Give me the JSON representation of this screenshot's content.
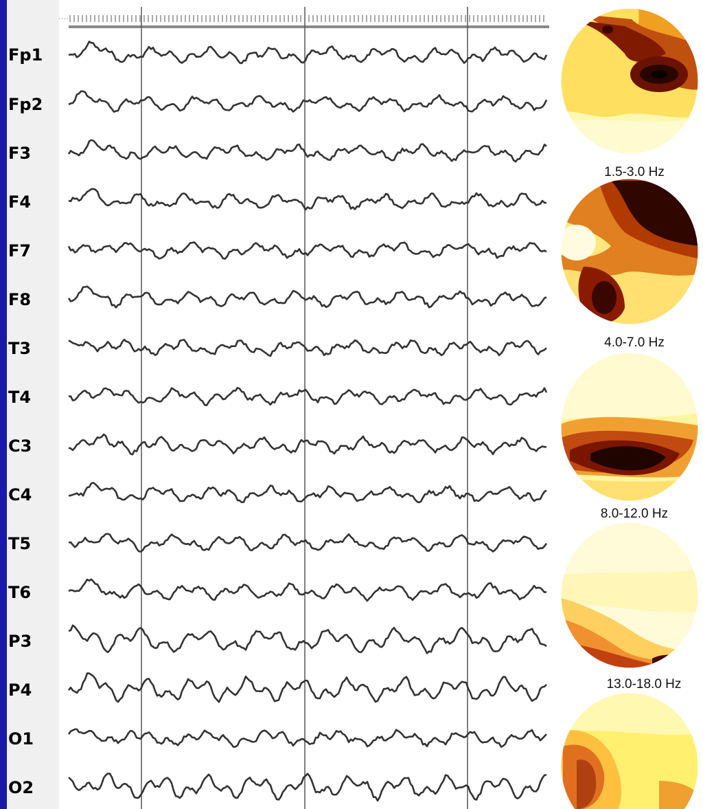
{
  "channels": [
    "Fp1",
    "Fp2",
    "F3",
    "F4",
    "F7",
    "F8",
    "T3",
    "T4",
    "C3",
    "C4",
    "T5",
    "T6",
    "P3",
    "P4",
    "O1",
    "O2"
  ],
  "bands": [
    {
      "label": ""
    },
    {
      "label": "1.5-3.0 Hz"
    },
    {
      "label": "4.0-7.0 Hz"
    },
    {
      "label": "8.0-12.0 Hz"
    },
    {
      "label": "13.0-18.0 Hz"
    }
  ],
  "colors": {
    "frame": "#1a1aa8",
    "trace": "#333333",
    "marker": "#555555",
    "map_low": "#fffbd0",
    "map_high": "#1a0000"
  }
}
